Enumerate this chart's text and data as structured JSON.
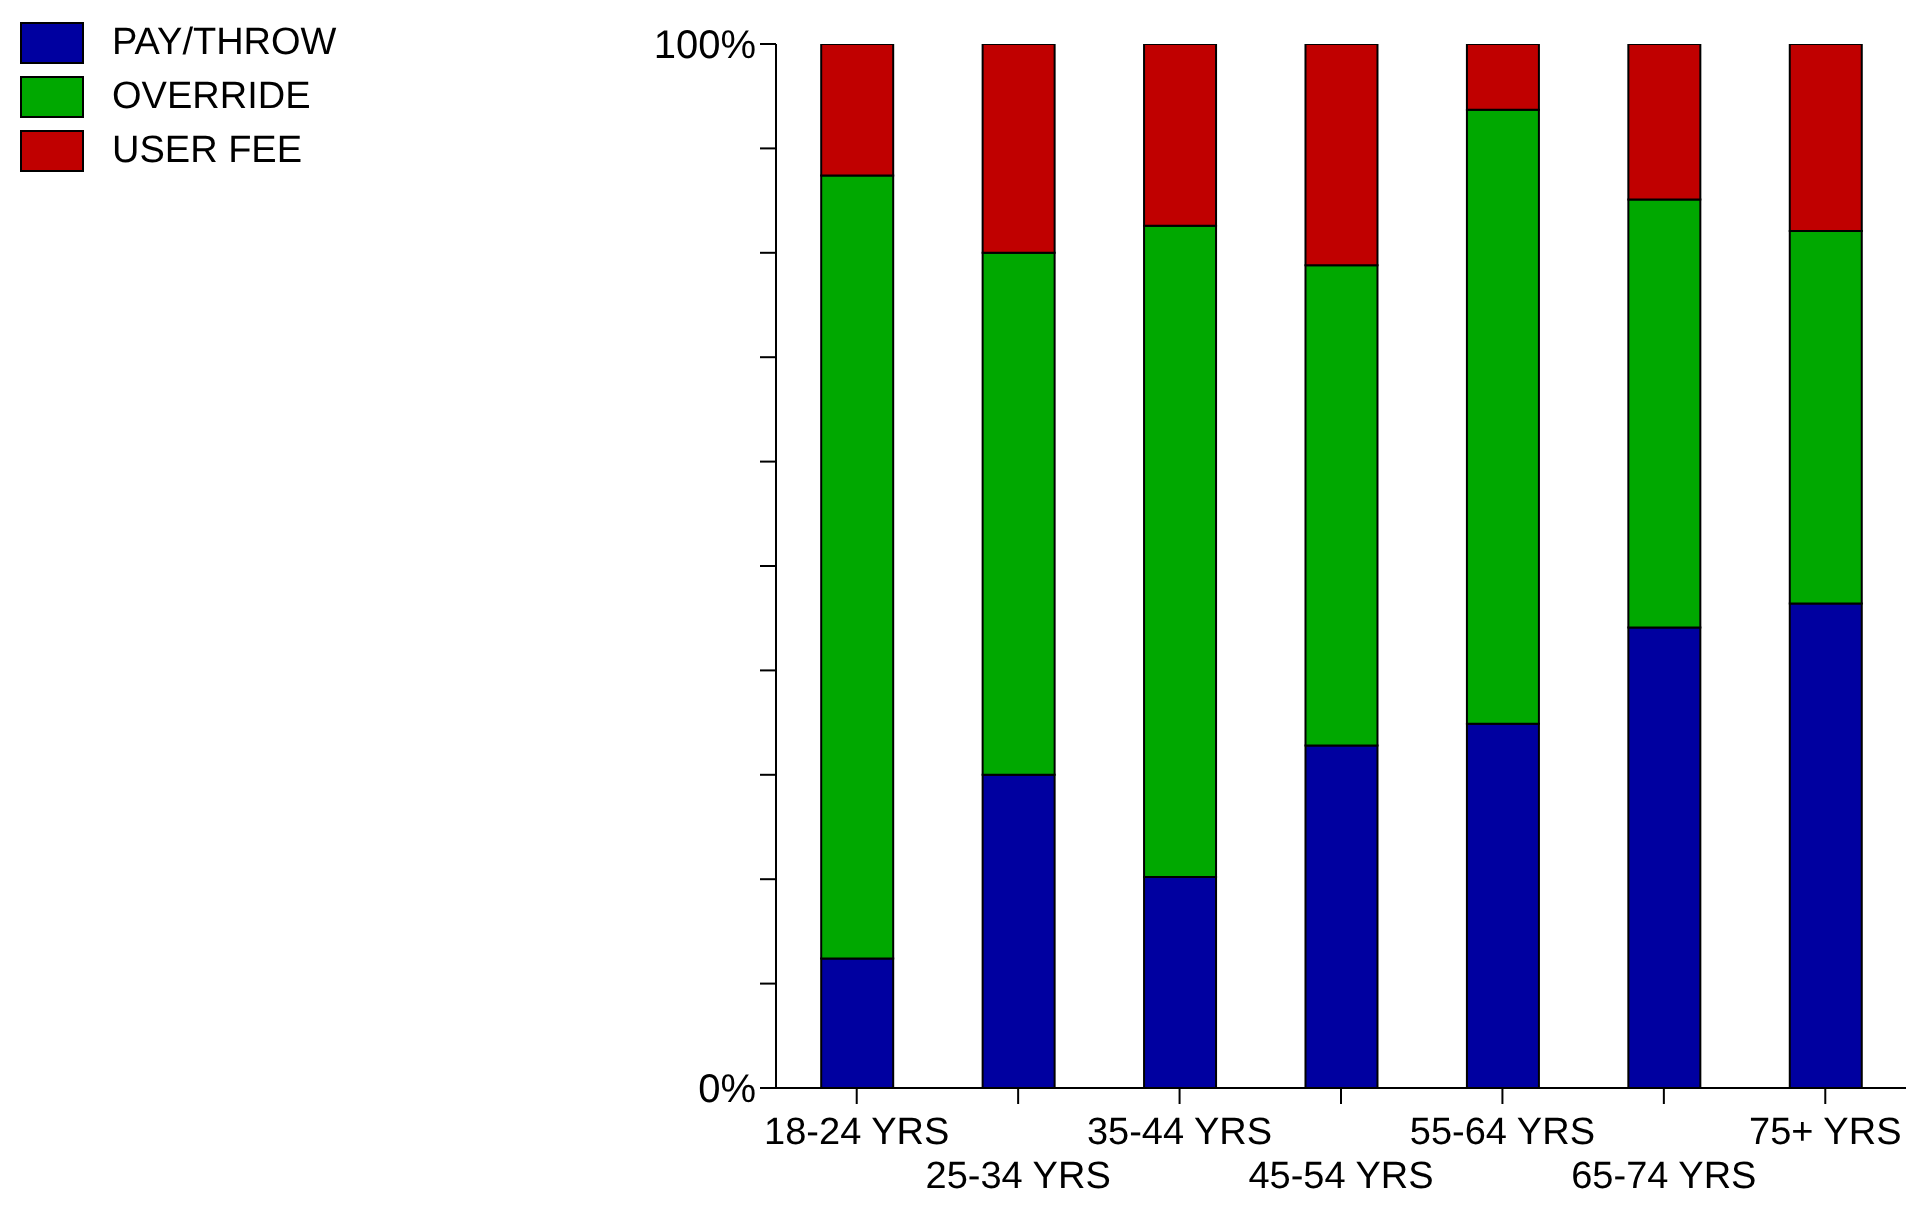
{
  "chart_data": {
    "type": "bar",
    "stacked": true,
    "categories": [
      "18-24 YRS",
      "25-34 YRS",
      "35-44 YRS",
      "45-54 YRS",
      "55-64 YRS",
      "65-74 YRS",
      "75+ YRS"
    ],
    "series": [
      {
        "name": "PAY/THROW",
        "color": "#0000a0",
        "values": [
          12.4,
          30.0,
          20.2,
          32.8,
          34.9,
          44.1,
          46.4
        ]
      },
      {
        "name": "OVERRIDE",
        "color": "#00a800",
        "values": [
          75.0,
          50.0,
          62.4,
          46.0,
          58.8,
          41.0,
          35.7
        ]
      },
      {
        "name": "USER FEE",
        "color": "#c00000",
        "values": [
          12.6,
          20.0,
          17.4,
          21.2,
          6.3,
          14.9,
          17.9
        ]
      }
    ],
    "ylim": [
      0,
      100
    ],
    "yticks": [
      {
        "value": 0,
        "label": "0%"
      },
      {
        "value": 10,
        "label": null
      },
      {
        "value": 20,
        "label": null
      },
      {
        "value": 30,
        "label": null
      },
      {
        "value": 40,
        "label": null
      },
      {
        "value": 50,
        "label": null
      },
      {
        "value": 60,
        "label": null
      },
      {
        "value": 70,
        "label": null
      },
      {
        "value": 80,
        "label": null
      },
      {
        "value": 90,
        "label": null
      },
      {
        "value": 100,
        "label": "100%"
      }
    ],
    "grid": false,
    "legend": "top left"
  }
}
